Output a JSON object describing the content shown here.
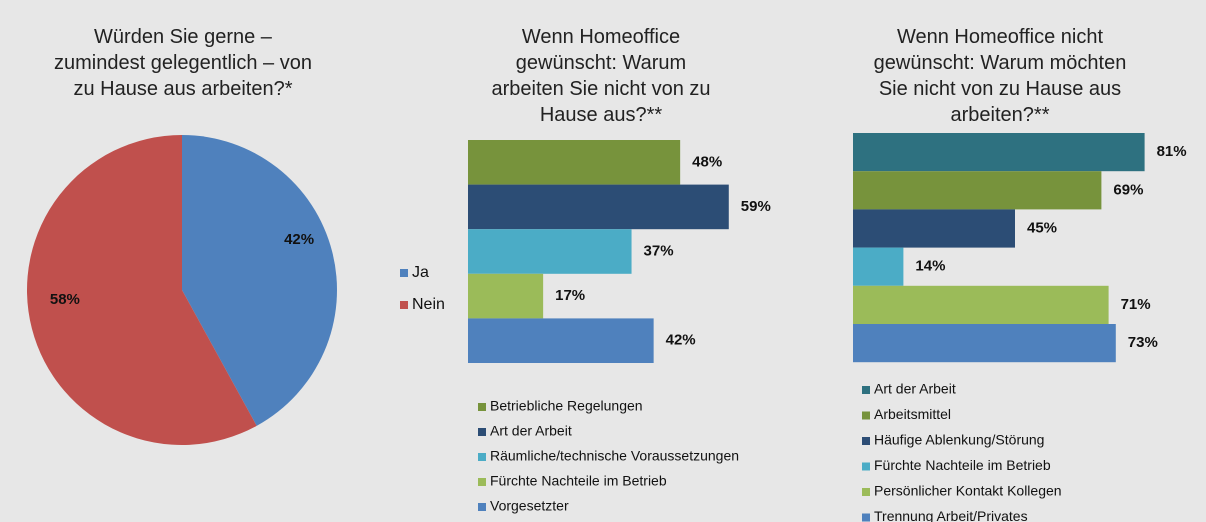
{
  "chart_data": [
    {
      "type": "pie",
      "title": "Würden Sie gerne – zumindest gelegentlich – von zu Hause aus arbeiten?*",
      "categories": [
        "Ja",
        "Nein"
      ],
      "values": [
        42,
        58
      ],
      "value_labels": [
        "42%",
        "58%"
      ],
      "colors": [
        "#4f81bd",
        "#c0504d"
      ]
    },
    {
      "type": "bar",
      "title": "Wenn Homeoffice gewünscht: Warum arbeiten Sie nicht von zu Hause aus?**",
      "categories": [
        "Betriebliche Regelungen",
        "Art der Arbeit",
        "Räumliche/technische Voraussetzungen",
        "Fürchte Nachteile im Betrieb",
        "Vorgesetzter"
      ],
      "values": [
        48,
        59,
        37,
        17,
        42
      ],
      "value_labels": [
        "48%",
        "59%",
        "37%",
        "17%",
        "42%"
      ],
      "colors": [
        "#77933c",
        "#2c4d75",
        "#4bacc6",
        "#9bbb59",
        "#4f81bd"
      ],
      "xlim": [
        0,
        100
      ]
    },
    {
      "type": "bar",
      "title": "Wenn Homeoffice nicht gewünscht: Warum möchten Sie nicht von zu Hause aus arbeiten?**",
      "categories": [
        "Art der Arbeit",
        "Arbeitsmittel",
        "Häufige Ablenkung/Störung",
        "Fürchte Nachteile im Betrieb",
        "Persönlicher Kontakt Kollegen",
        "Trennung Arbeit/Privates"
      ],
      "values": [
        81,
        69,
        45,
        14,
        71,
        73
      ],
      "value_labels": [
        "81%",
        "69%",
        "45%",
        "14%",
        "71%",
        "73%"
      ],
      "colors": [
        "#2e7180",
        "#77933c",
        "#2c4d75",
        "#4bacc6",
        "#9bbb59",
        "#4f81bd"
      ],
      "xlim": [
        0,
        100
      ]
    }
  ]
}
